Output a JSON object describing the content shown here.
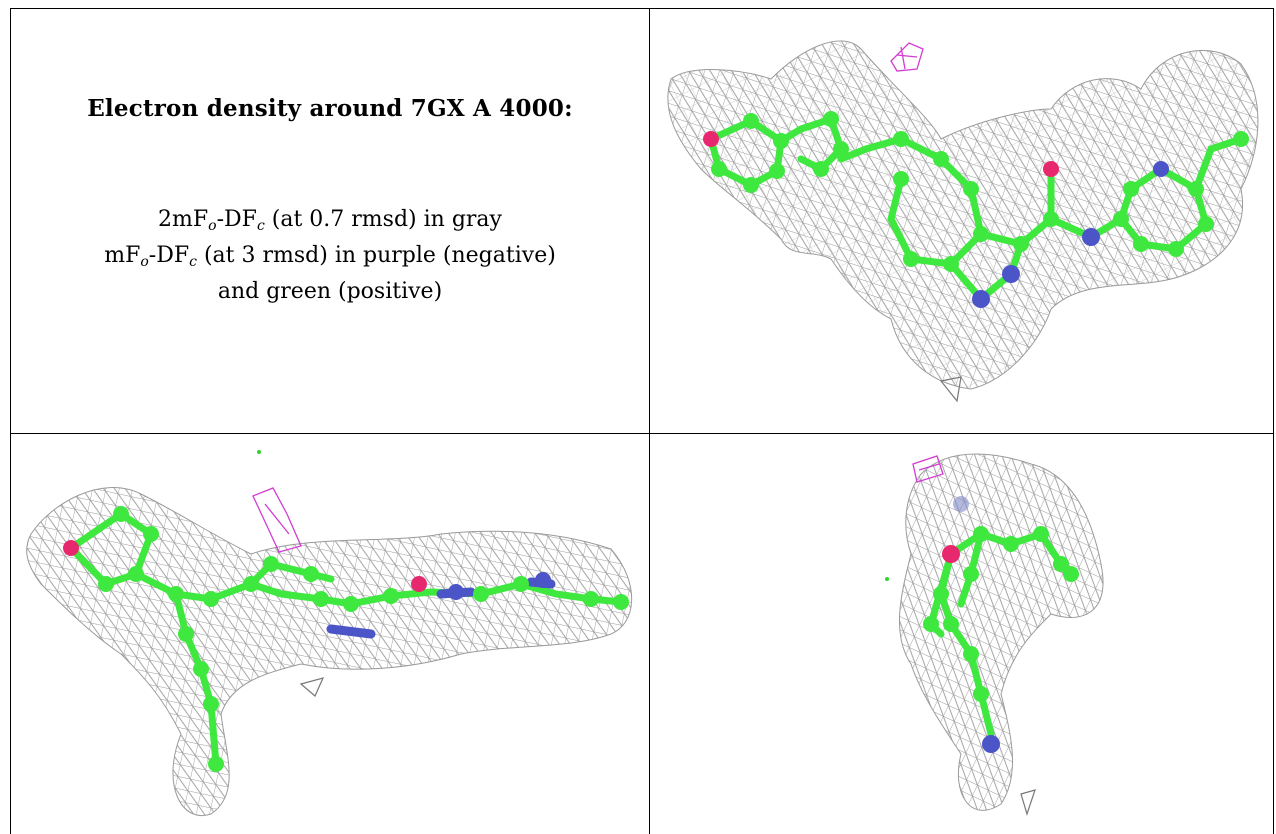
{
  "caption": {
    "title": "Electron density around 7GX A 4000:",
    "line1_parts": [
      "2mF",
      "o",
      "-DF",
      "c",
      " (at 0.7 rmsd) in gray"
    ],
    "line2_parts": [
      "mF",
      "o",
      "-DF",
      "c",
      " (at 3 rmsd) in purple (negative)"
    ],
    "line3": "and green (positive)"
  },
  "colors": {
    "mesh": "#9a9a9a",
    "carbon": "#3ee83e",
    "oxygen": "#e8286e",
    "nitrogen": "#4b55c8",
    "negative_density": "#d23cd2",
    "positive_density": "#2fd52f"
  },
  "panels": [
    {
      "name": "view-top-right",
      "description_icon": "ligand-density-view"
    },
    {
      "name": "view-bottom-left",
      "description_icon": "ligand-density-view"
    },
    {
      "name": "view-bottom-right",
      "description_icon": "ligand-density-view"
    }
  ]
}
